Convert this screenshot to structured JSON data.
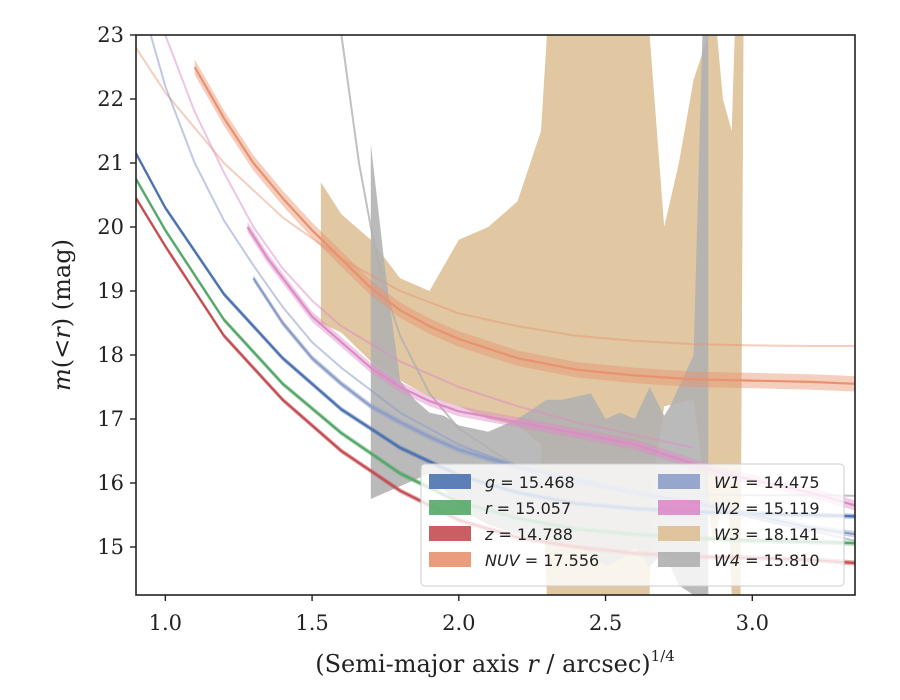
{
  "chart_data": {
    "type": "line",
    "xlabel": "(Semi-major axis r / arcsec)1/4",
    "xlabel_parts": {
      "main": "(Semi-major axis ",
      "var": "r",
      "rest": " / arcsec)",
      "sup": "1/4"
    },
    "ylabel": "m(<r) (mag)",
    "ylabel_parts": {
      "m": "m",
      "open": "(",
      "lt": "<",
      "r": "r",
      "close": ")",
      "unit": " (mag)"
    },
    "xlim": [
      0.9,
      3.35
    ],
    "ylim": [
      23.0,
      14.25
    ],
    "y_inverted": true,
    "xticks": [
      1.0,
      1.5,
      2.0,
      2.5,
      3.0
    ],
    "xtick_labels": [
      "1.0",
      "1.5",
      "2.0",
      "2.5",
      "3.0"
    ],
    "yticks": [
      15,
      16,
      17,
      18,
      19,
      20,
      21,
      22,
      23
    ],
    "ytick_labels": [
      "15",
      "16",
      "17",
      "18",
      "19",
      "20",
      "21",
      "22",
      "23"
    ],
    "grid": false,
    "legend_position": "lower-right",
    "legend_columns": 2,
    "series": [
      {
        "name": "g",
        "value": "15.468",
        "legend": "g = 15.468",
        "color": "#4c72b0",
        "x": [
          0.9,
          1.0,
          1.2,
          1.4,
          1.6,
          1.8,
          2.0,
          2.2,
          2.4,
          2.6,
          2.8,
          3.0,
          3.2,
          3.35
        ],
        "y": [
          21.15,
          20.3,
          18.95,
          17.95,
          17.15,
          16.55,
          16.12,
          15.85,
          15.68,
          15.6,
          15.55,
          15.52,
          15.5,
          15.48
        ],
        "err": 0.04,
        "extra": []
      },
      {
        "name": "r",
        "value": "15.057",
        "legend": "r = 15.057",
        "color": "#55a868",
        "x": [
          0.9,
          1.0,
          1.2,
          1.4,
          1.6,
          1.8,
          2.0,
          2.2,
          2.4,
          2.6,
          2.8,
          3.0,
          3.2,
          3.35
        ],
        "y": [
          20.75,
          19.95,
          18.55,
          17.55,
          16.78,
          16.15,
          15.7,
          15.45,
          15.28,
          15.2,
          15.14,
          15.1,
          15.08,
          15.06
        ],
        "err": 0.04,
        "extra": []
      },
      {
        "name": "z",
        "value": "14.788",
        "legend": "z = 14.788",
        "color": "#c44e52",
        "x": [
          0.9,
          1.0,
          1.2,
          1.4,
          1.6,
          1.8,
          2.0,
          2.2,
          2.4,
          2.6,
          2.8,
          3.0,
          3.2,
          3.35
        ],
        "y": [
          20.45,
          19.7,
          18.3,
          17.3,
          16.5,
          15.88,
          15.42,
          15.15,
          15.0,
          14.9,
          14.85,
          14.83,
          14.8,
          14.75
        ],
        "err": 0.04,
        "extra": []
      },
      {
        "name": "NUV",
        "value": "17.556",
        "legend": "NUV = 17.556",
        "color": "#e8926f",
        "x": [
          1.1,
          1.2,
          1.3,
          1.4,
          1.5,
          1.6,
          1.7,
          1.8,
          1.9,
          2.0,
          2.2,
          2.4,
          2.6,
          2.8,
          3.0,
          3.2,
          3.35
        ],
        "y": [
          22.5,
          21.7,
          21.0,
          20.45,
          19.95,
          19.5,
          19.05,
          18.7,
          18.45,
          18.25,
          17.95,
          17.77,
          17.68,
          17.62,
          17.6,
          17.58,
          17.55
        ],
        "err": 0.12,
        "extra": [
          {
            "x": [
              0.9,
              1.0,
              1.2,
              1.4,
              1.6,
              1.8,
              2.0,
              2.2,
              2.4,
              2.6,
              2.8,
              3.0,
              3.2,
              3.35
            ],
            "y": [
              22.8,
              22.1,
              21.0,
              20.15,
              19.5,
              19.0,
              18.65,
              18.45,
              18.3,
              18.22,
              18.17,
              18.15,
              18.14,
              18.14
            ],
            "opacity": 0.45,
            "width": 2
          }
        ]
      },
      {
        "name": "W1",
        "value": "14.475",
        "legend": "W1 = 14.475",
        "color": "#8c9dc8",
        "x": [
          1.3,
          1.4,
          1.5,
          1.6,
          1.7,
          1.8,
          1.9,
          2.0,
          2.2,
          2.4,
          2.6,
          2.8,
          3.0,
          3.2,
          3.35
        ],
        "y": [
          19.2,
          18.5,
          17.95,
          17.55,
          17.2,
          16.95,
          16.72,
          16.52,
          16.25,
          16.05,
          15.85,
          15.7,
          15.5,
          15.3,
          15.2
        ],
        "err": 0.05,
        "extra": [
          {
            "x": [
              0.95,
              1.0,
              1.1,
              1.2,
              1.3,
              1.4,
              1.5,
              1.6,
              1.8,
              2.0,
              2.2,
              2.4,
              2.6,
              2.8,
              3.0,
              3.2,
              3.35
            ],
            "y": [
              23.0,
              22.2,
              21.0,
              20.1,
              19.4,
              18.75,
              18.2,
              17.8,
              17.1,
              16.6,
              16.25,
              16.0,
              15.85,
              15.7,
              15.45,
              15.25,
              15.1
            ],
            "opacity": 0.55,
            "width": 2
          }
        ]
      },
      {
        "name": "W2",
        "value": "15.119",
        "legend": "W2 = 15.119",
        "color": "#dd8bc6",
        "x": [
          1.28,
          1.35,
          1.4,
          1.5,
          1.6,
          1.7,
          1.8,
          1.9,
          2.0,
          2.2,
          2.4,
          2.6,
          2.8,
          2.9,
          3.0,
          3.2,
          3.35
        ],
        "y": [
          20.0,
          19.5,
          19.2,
          18.6,
          18.2,
          17.8,
          17.5,
          17.28,
          17.12,
          16.95,
          16.78,
          16.6,
          16.3,
          16.15,
          16.05,
          15.85,
          15.65
        ],
        "err": 0.08,
        "extra": [
          {
            "x": [
              1.0,
              1.1,
              1.2,
              1.3,
              1.4,
              1.5,
              1.6,
              1.8,
              2.0,
              2.2,
              2.4,
              2.6,
              2.8
            ],
            "y": [
              23.0,
              21.8,
              20.85,
              20.0,
              19.35,
              18.85,
              18.45,
              17.9,
              17.5,
              17.2,
              16.95,
              16.75,
              16.55
            ],
            "opacity": 0.5,
            "width": 2
          }
        ]
      },
      {
        "name": "W3",
        "value": "18.141",
        "legend": "W3 = 18.141",
        "color": "#ddbf95",
        "x": [],
        "y": [],
        "err": 0,
        "extra": [],
        "fill_polygons": [
          [
            [
              1.53,
              18.5
            ],
            [
              1.6,
              18.35
            ],
            [
              1.7,
              17.9
            ],
            [
              1.8,
              17.6
            ],
            [
              1.9,
              17.35
            ],
            [
              2.0,
              17.2
            ],
            [
              2.1,
              17.0
            ],
            [
              2.2,
              16.9
            ],
            [
              2.28,
              16.6
            ],
            [
              2.3,
              14.25
            ],
            [
              2.38,
              14.25
            ],
            [
              2.5,
              14.25
            ],
            [
              2.65,
              14.25
            ],
            [
              2.66,
              16.0
            ],
            [
              2.7,
              17.2
            ],
            [
              2.8,
              17.3
            ],
            [
              2.85,
              15.6
            ],
            [
              2.87,
              15.0
            ],
            [
              2.89,
              15.55
            ],
            [
              2.92,
              15.55
            ],
            [
              2.93,
              14.25
            ],
            [
              2.96,
              14.25
            ],
            [
              2.97,
              23.0
            ],
            [
              2.94,
              23.0
            ],
            [
              2.93,
              21.5
            ],
            [
              2.9,
              22.0
            ],
            [
              2.88,
              23.0
            ],
            [
              2.85,
              23.0
            ],
            [
              2.8,
              22.3
            ],
            [
              2.75,
              21.0
            ],
            [
              2.7,
              20.0
            ],
            [
              2.65,
              23.0
            ],
            [
              2.5,
              23.0
            ],
            [
              2.3,
              23.0
            ],
            [
              2.28,
              21.5
            ],
            [
              2.2,
              20.4
            ],
            [
              2.1,
              20.0
            ],
            [
              2.0,
              19.8
            ],
            [
              1.9,
              19.0
            ],
            [
              1.8,
              19.2
            ],
            [
              1.7,
              19.8
            ],
            [
              1.6,
              20.2
            ],
            [
              1.53,
              20.7
            ]
          ]
        ]
      },
      {
        "name": "W4",
        "value": "15.810",
        "legend": "W4 = 15.810",
        "color": "#b0b0b0",
        "x": [],
        "y": [],
        "err": 0,
        "extra": [
          {
            "x": [
              1.6,
              1.63,
              1.66,
              1.7,
              1.75,
              1.8,
              1.9,
              2.0,
              2.2,
              2.4,
              2.6,
              2.8,
              3.0,
              3.2,
              3.35
            ],
            "y": [
              23.0,
              22.0,
              21.0,
              20.0,
              19.0,
              18.3,
              17.4,
              16.85,
              16.25,
              16.0,
              15.88,
              15.83,
              15.81,
              15.81,
              15.8
            ],
            "opacity": 0.8,
            "width": 2
          }
        ],
        "fill_polygons": [
          [
            [
              1.7,
              15.75
            ],
            [
              1.8,
              15.95
            ],
            [
              1.85,
              16.05
            ],
            [
              1.9,
              16.15
            ],
            [
              1.95,
              15.9
            ],
            [
              2.0,
              15.6
            ],
            [
              2.1,
              15.35
            ],
            [
              2.2,
              15.2
            ],
            [
              2.3,
              15.1
            ],
            [
              2.4,
              15.05
            ],
            [
              2.5,
              14.7
            ],
            [
              2.55,
              14.8
            ],
            [
              2.6,
              15.0
            ],
            [
              2.65,
              14.7
            ],
            [
              2.7,
              14.9
            ],
            [
              2.75,
              14.4
            ],
            [
              2.8,
              14.25
            ],
            [
              2.85,
              14.25
            ],
            [
              2.85,
              23.0
            ],
            [
              2.83,
              23.0
            ],
            [
              2.8,
              18.0
            ],
            [
              2.75,
              17.5
            ],
            [
              2.72,
              17.2
            ],
            [
              2.7,
              17.05
            ],
            [
              2.65,
              17.5
            ],
            [
              2.6,
              17.0
            ],
            [
              2.55,
              17.1
            ],
            [
              2.5,
              17.0
            ],
            [
              2.45,
              17.4
            ],
            [
              2.4,
              17.35
            ],
            [
              2.35,
              17.3
            ],
            [
              2.3,
              17.3
            ],
            [
              2.2,
              17.0
            ],
            [
              2.1,
              16.8
            ],
            [
              2.0,
              16.9
            ],
            [
              1.95,
              17.05
            ],
            [
              1.9,
              17.1
            ],
            [
              1.85,
              17.3
            ],
            [
              1.8,
              17.6
            ],
            [
              1.75,
              19.3
            ],
            [
              1.7,
              21.3
            ]
          ]
        ]
      }
    ]
  }
}
